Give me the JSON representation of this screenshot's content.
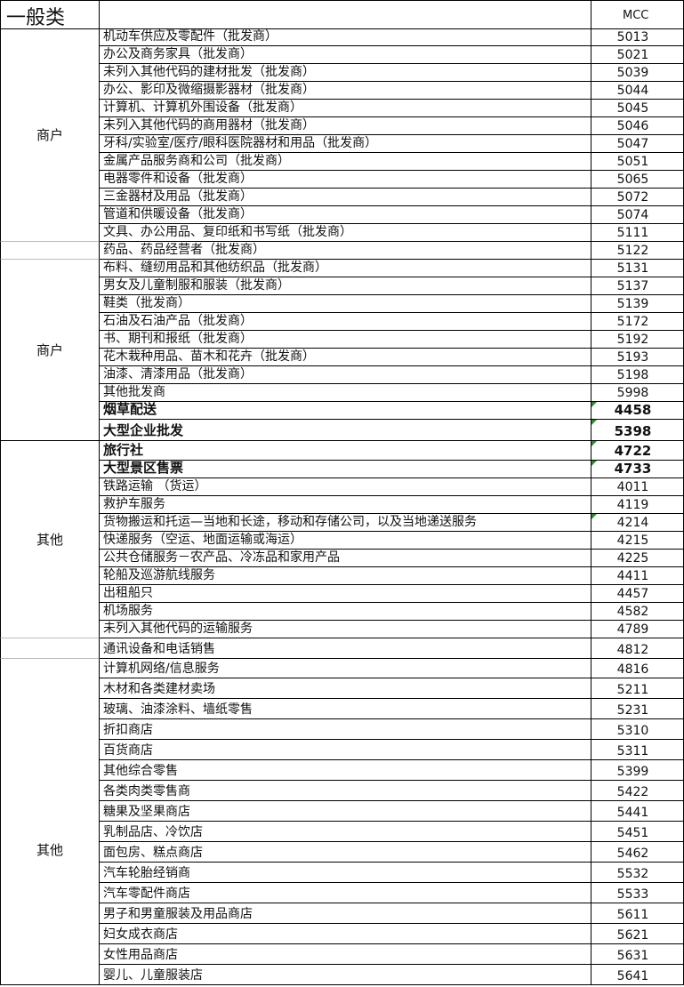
{
  "header": {
    "category": "一般类",
    "mcc_label": "MCC"
  },
  "groups": [
    {
      "label": "商户"
    },
    {
      "label": ""
    },
    {
      "label": "商户"
    },
    {
      "label": "其他"
    },
    {
      "label": ""
    },
    {
      "label": "其他"
    }
  ],
  "rows": [
    {
      "name": "机动车供应及零配件（批发商）",
      "mcc": "5013"
    },
    {
      "name": "办公及商务家具（批发商）",
      "mcc": "5021"
    },
    {
      "name": "未列入其他代码的建材批发（批发商）",
      "mcc": "5039"
    },
    {
      "name": "办公、影印及微缩摄影器材（批发商）",
      "mcc": "5044"
    },
    {
      "name": "计算机、计算机外围设备（批发商）",
      "mcc": "5045"
    },
    {
      "name": "未列入其他代码的商用器材（批发商）",
      "mcc": "5046"
    },
    {
      "name": "牙科/实验室/医疗/眼科医院器材和用品（批发商）",
      "mcc": "5047"
    },
    {
      "name": "金属产品服务商和公司（批发商）",
      "mcc": "5051"
    },
    {
      "name": "电器零件和设备（批发商）",
      "mcc": "5065"
    },
    {
      "name": "三金器材及用品（批发商）",
      "mcc": "5072"
    },
    {
      "name": "管道和供暖设备（批发商）",
      "mcc": "5074"
    },
    {
      "name": "文具、办公用品、复印纸和书写纸（批发商）",
      "mcc": "5111"
    },
    {
      "name": "药品、药品经营者（批发商）",
      "mcc": "5122"
    },
    {
      "name": "布料、缝纫用品和其他纺织品（批发商）",
      "mcc": "5131"
    },
    {
      "name": "男女及儿童制服和服装（批发商）",
      "mcc": "5137"
    },
    {
      "name": "鞋类（批发商）",
      "mcc": "5139"
    },
    {
      "name": "石油及石油产品（批发商）",
      "mcc": "5172"
    },
    {
      "name": "书、期刊和报纸（批发商）",
      "mcc": "5192"
    },
    {
      "name": "花木栽种用品、苗木和花卉（批发商）",
      "mcc": "5193"
    },
    {
      "name": "油漆、清漆用品（批发商）",
      "mcc": "5198"
    },
    {
      "name": "其他批发商",
      "mcc": "5998"
    },
    {
      "name": "烟草配送",
      "mcc": "4458",
      "emphasis": true,
      "flag": true
    },
    {
      "name": "大型企业批发",
      "mcc": "5398",
      "emphasis": true,
      "flag": true
    },
    {
      "name": "旅行社",
      "mcc": "4722",
      "emphasis": true,
      "flag": true
    },
    {
      "name": "大型景区售票",
      "mcc": "4733",
      "emphasis": true,
      "flag": true
    },
    {
      "name": "铁路运输 （货运）",
      "mcc": "4011"
    },
    {
      "name": "救护车服务",
      "mcc": "4119"
    },
    {
      "name": "货物搬运和托运—当地和长途，移动和存储公司，以及当地递送服务",
      "mcc": "4214",
      "flag": true
    },
    {
      "name": "快递服务（空运、地面运输或海运）",
      "mcc": "4215"
    },
    {
      "name": "公共仓储服务－农产品、冷冻品和家用产品",
      "mcc": "4225"
    },
    {
      "name": "轮船及巡游航线服务",
      "mcc": "4411"
    },
    {
      "name": "出租船只",
      "mcc": "4457"
    },
    {
      "name": "机场服务",
      "mcc": "4582"
    },
    {
      "name": "未列入其他代码的运输服务",
      "mcc": "4789"
    },
    {
      "name": "通讯设备和电话销售",
      "mcc": "4812"
    },
    {
      "name": "计算机网络/信息服务",
      "mcc": "4816"
    },
    {
      "name": "木材和各类建材卖场",
      "mcc": "5211"
    },
    {
      "name": "玻璃、油漆涂料、墙纸零售",
      "mcc": "5231"
    },
    {
      "name": "折扣商店",
      "mcc": "5310"
    },
    {
      "name": "百货商店",
      "mcc": "5311"
    },
    {
      "name": "其他综合零售",
      "mcc": "5399"
    },
    {
      "name": "各类肉类零售商",
      "mcc": "5422"
    },
    {
      "name": "糖果及坚果商店",
      "mcc": "5441"
    },
    {
      "name": "乳制品店、冷饮店",
      "mcc": "5451"
    },
    {
      "name": "面包房、糕点商店",
      "mcc": "5462"
    },
    {
      "name": "汽车轮胎经销商",
      "mcc": "5532"
    },
    {
      "name": "汽车零配件商店",
      "mcc": "5533"
    },
    {
      "name": "男子和男童服装及用品商店",
      "mcc": "5611"
    },
    {
      "name": "妇女成衣商店",
      "mcc": "5621"
    },
    {
      "name": "女性用品商店",
      "mcc": "5631"
    },
    {
      "name": "婴儿、儿童服装店",
      "mcc": "5641"
    }
  ]
}
